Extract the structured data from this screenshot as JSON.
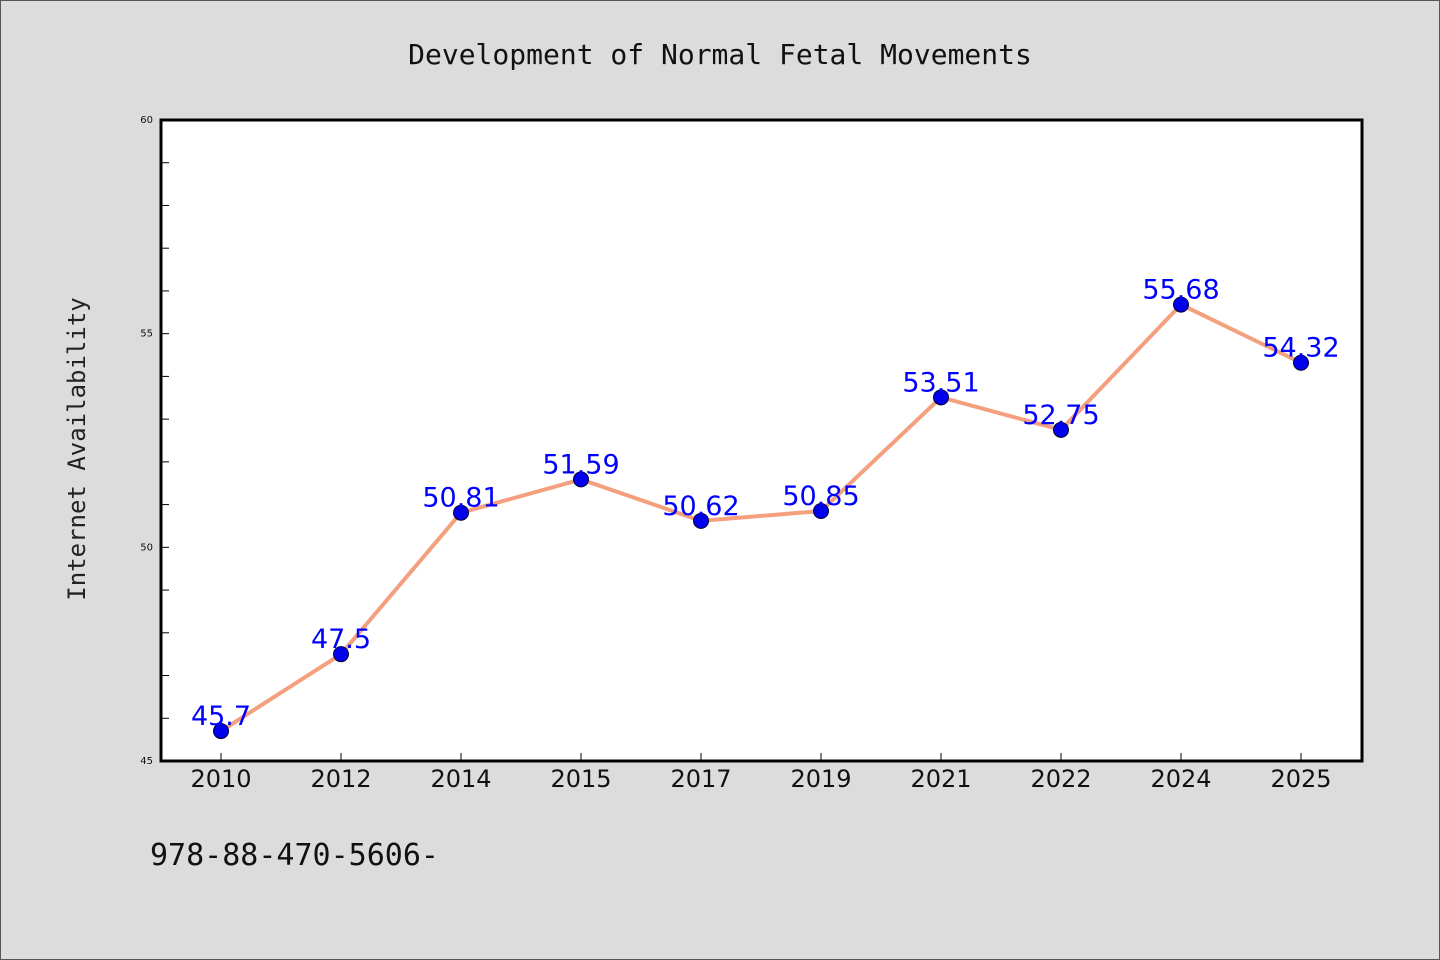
{
  "chart_data": {
    "type": "line",
    "title": "Development of Normal Fetal Movements",
    "xlabel": "",
    "ylabel": "Internet Availability",
    "categories": [
      "2010",
      "2012",
      "2014",
      "2015",
      "2017",
      "2019",
      "2021",
      "2022",
      "2024",
      "2025"
    ],
    "series": [
      {
        "values": [
          45.7,
          47.5,
          50.81,
          51.59,
          50.62,
          50.85,
          53.51,
          52.75,
          55.68,
          54.32
        ],
        "labels": [
          "45.7",
          "47.5",
          "50.81",
          "51.59",
          "50.62",
          "50.85",
          "53.51",
          "52.75",
          "55.68",
          "54.32"
        ]
      }
    ],
    "ylim": [
      45,
      60
    ],
    "yticks": [
      "45",
      "50",
      "55",
      "60"
    ],
    "grid": false,
    "line_color": "#f4a07f",
    "marker_color": "#0000ee",
    "label_color": "#0000ff"
  },
  "footer": {
    "text": "978-88-470-5606-"
  }
}
